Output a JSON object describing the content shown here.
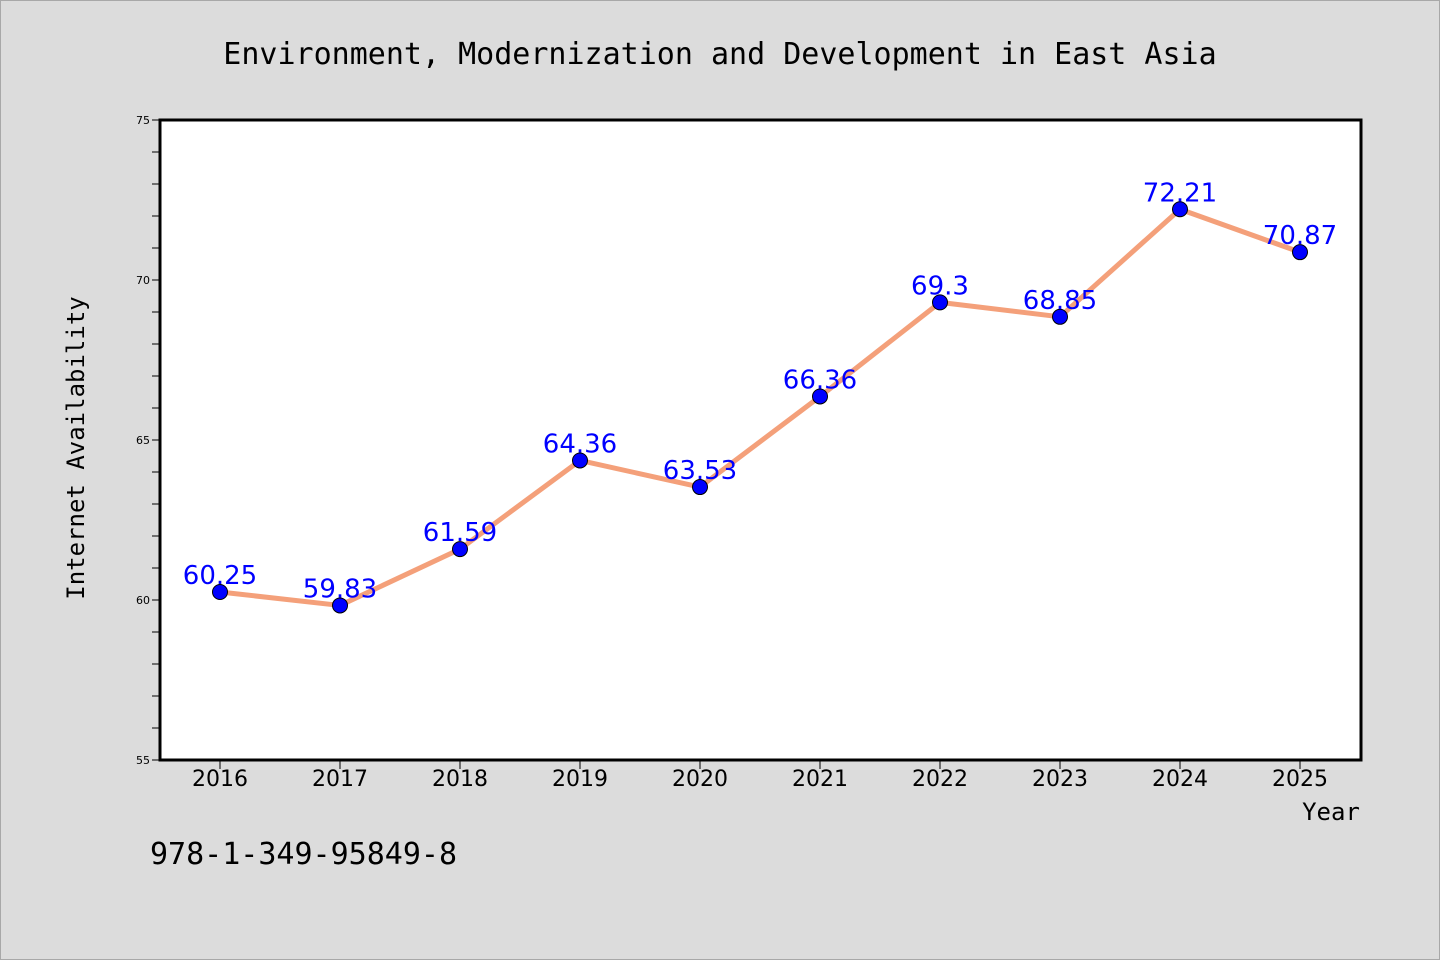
{
  "chart_data": {
    "type": "line",
    "title": "Environment, Modernization and Development in East Asia",
    "xlabel": "Year",
    "ylabel": "Internet Availability",
    "categories": [
      "2016",
      "2017",
      "2018",
      "2019",
      "2020",
      "2021",
      "2022",
      "2023",
      "2024",
      "2025"
    ],
    "series": [
      {
        "values": [
          60.25,
          59.83,
          61.59,
          64.36,
          63.53,
          66.36,
          69.3,
          68.85,
          72.21,
          70.87
        ],
        "line_color": "#f4a07a",
        "marker_color": "#0000ff"
      }
    ],
    "data_labels": [
      "60.25",
      "59.83",
      "61.59",
      "64.36",
      "63.53",
      "66.36",
      "69.3",
      "68.85",
      "72.21",
      "70.87"
    ],
    "ylim": [
      55,
      75
    ],
    "y_ticks": [
      "55",
      "60",
      "65",
      "70",
      "75"
    ],
    "grid": false,
    "legend": "none"
  },
  "footer": {
    "isbn": "978-1-349-95849-8"
  },
  "colors": {
    "background": "#dcdcdc",
    "plot_background": "#ffffff",
    "line": "#f4a07a",
    "marker": "#0000ff",
    "label": "#0000ff"
  }
}
